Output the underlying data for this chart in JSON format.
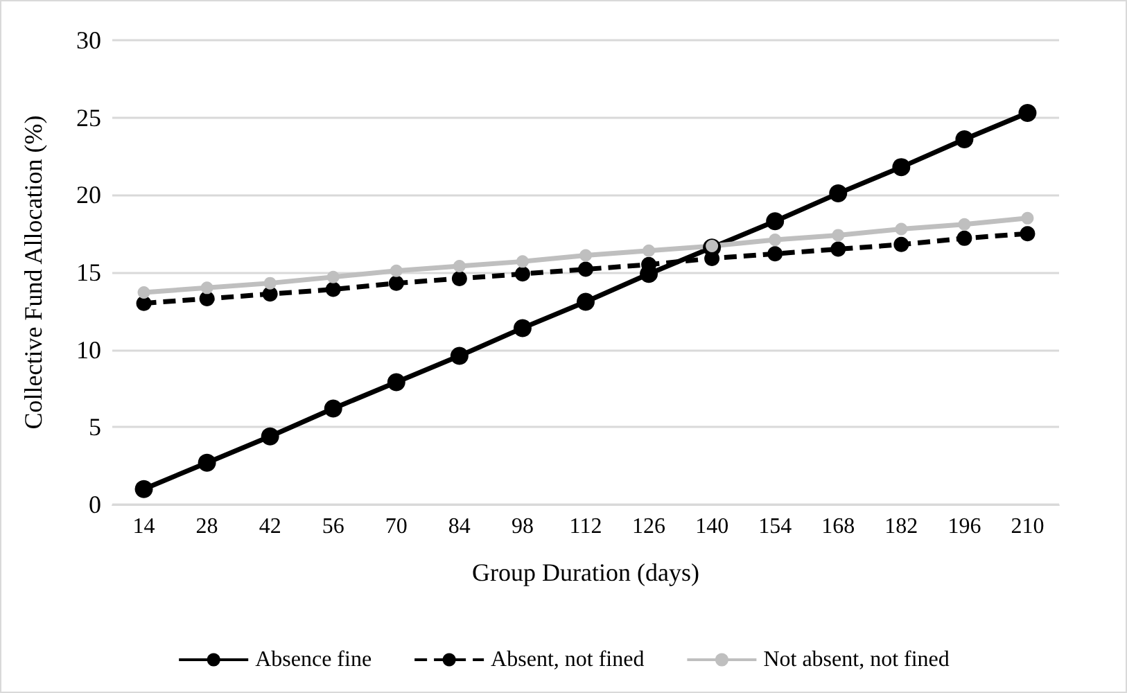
{
  "chart_data": {
    "type": "line",
    "xlabel": "Group Duration (days)",
    "ylabel": "Collective Fund Allocation (%)",
    "categories": [
      "14",
      "28",
      "42",
      "56",
      "70",
      "84",
      "98",
      "112",
      "126",
      "140",
      "154",
      "168",
      "182",
      "196",
      "210"
    ],
    "ylim": [
      0,
      30
    ],
    "yticks": [
      0,
      5,
      10,
      15,
      20,
      25,
      30
    ],
    "grid": "y",
    "legend": "bottom",
    "marker": "circle",
    "series": [
      {
        "name": "Absence fine",
        "color": "#000000",
        "line_style": "solid",
        "values": [
          1.0,
          2.7,
          4.4,
          6.2,
          7.9,
          9.6,
          11.4,
          13.1,
          14.9,
          16.6,
          18.3,
          20.1,
          21.8,
          23.6,
          25.3
        ]
      },
      {
        "name": "Absent, not fined",
        "color": "#000000",
        "line_style": "dashed",
        "values": [
          13.0,
          13.3,
          13.6,
          13.9,
          14.3,
          14.6,
          14.9,
          15.2,
          15.5,
          15.9,
          16.2,
          16.5,
          16.8,
          17.2,
          17.5
        ]
      },
      {
        "name": "Not absent, not fined",
        "color": "#bfbfbf",
        "line_style": "solid",
        "values": [
          13.7,
          14.0,
          14.3,
          14.7,
          15.1,
          15.4,
          15.7,
          16.1,
          16.4,
          16.7,
          17.1,
          17.4,
          17.8,
          18.1,
          18.5
        ]
      }
    ]
  }
}
